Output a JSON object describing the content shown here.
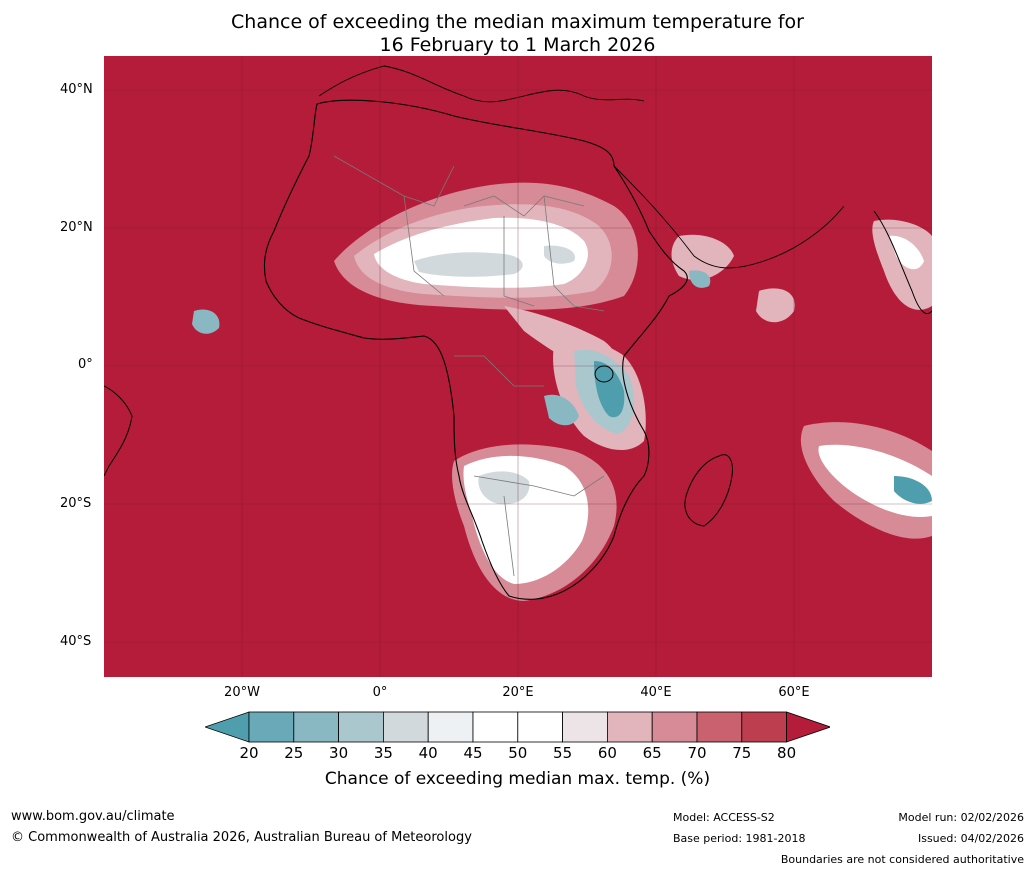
{
  "title": {
    "line1": "Chance of exceeding the median maximum temperature for",
    "line2": "16 February to 1 March 2026"
  },
  "axes": {
    "lat_ticks": [
      "40°N",
      "20°N",
      "0°",
      "20°S",
      "40°S"
    ],
    "lon_ticks": [
      "20°W",
      "0°",
      "20°E",
      "40°E",
      "60°E"
    ]
  },
  "colorbar": {
    "ticks": [
      "20",
      "25",
      "30",
      "35",
      "40",
      "45",
      "50",
      "55",
      "60",
      "65",
      "70",
      "75",
      "80"
    ],
    "colors": [
      "#4f9eae",
      "#6aaab8",
      "#89b8c3",
      "#aac7cd",
      "#d2d9dc",
      "#eef1f3",
      "#ffffff",
      "#ffffff",
      "#ece4e6",
      "#e2b5bc",
      "#d68b96",
      "#c9616f",
      "#bd3e4f",
      "#b41c3a"
    ],
    "label": "Chance of exceeding median max. temp. (%)"
  },
  "palette": {
    "hot": "#b41c3a",
    "warm1": "#bd3e4f",
    "warm2": "#c9616f",
    "warm3": "#d68b96",
    "warm4": "#e2b5bc",
    "neutral": "#ffffff",
    "cool1": "#d2d9dc",
    "cool2": "#89b8c3",
    "cool3": "#4f9eae"
  },
  "footer": {
    "website": "www.bom.gov.au/climate",
    "copyright": "© Commonwealth of Australia 2026, Australian Bureau of Meteorology",
    "model": "Model: ACCESS-S2",
    "base_period": "Base period: 1981-2018",
    "model_run": "Model run: 02/02/2026",
    "issued": "Issued: 04/02/2026",
    "disclaimer": "Boundaries are not considered authoritative"
  }
}
